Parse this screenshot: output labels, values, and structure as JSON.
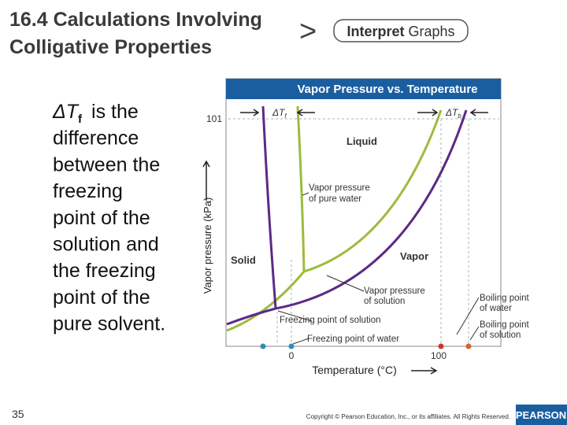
{
  "header": {
    "title_lines": [
      "16.4 Calculations Involving",
      "Colligative Properties"
    ],
    "button": {
      "bold": "Interpret",
      "normal": "Graphs"
    }
  },
  "body": {
    "symbol": "ΔT",
    "subscript": "f",
    "lines": [
      "is the",
      "difference",
      "between the",
      "freezing",
      "point of the",
      "solution and",
      "the freezing",
      "point of the",
      "pure solvent."
    ]
  },
  "figure": {
    "title": "Vapor Pressure vs. Temperature",
    "y_label": "Vapor pressure (kPa)",
    "x_label": "Temperature (°C)",
    "y_tick": "101",
    "x_ticks": [
      "0",
      "100"
    ],
    "delta_tf": {
      "symbol": "ΔT",
      "subscript": "f"
    },
    "delta_tb": {
      "symbol": "ΔT",
      "subscript": "b"
    },
    "regions": {
      "liquid": "Liquid",
      "solid": "Solid",
      "vapor": "Vapor"
    },
    "labels": {
      "vp_water": [
        "Vapor pressure",
        "of pure water"
      ],
      "vp_solution": [
        "Vapor pressure",
        "of solution"
      ],
      "fp_solution": "Freezing point of solution",
      "fp_water": "Freezing point of water",
      "bp_water": [
        "Boiling point",
        "of water"
      ],
      "bp_solution": [
        "Boiling point",
        "of solution"
      ]
    }
  },
  "footer": {
    "page": "35",
    "copyright": "Copyright © Pearson Education, Inc., or its affiliates. All Rights Reserved.",
    "logo": "PEARSON"
  }
}
